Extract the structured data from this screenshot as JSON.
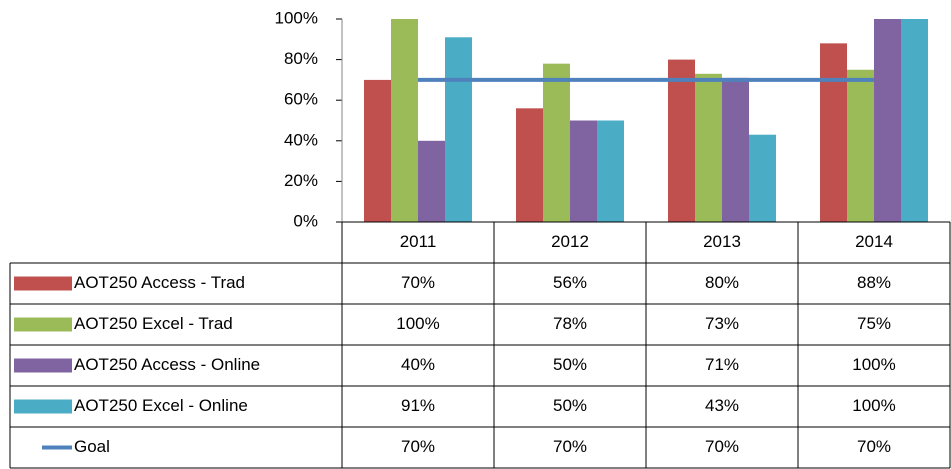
{
  "chart_data": {
    "type": "bar",
    "categories": [
      "2011",
      "2012",
      "2013",
      "2014"
    ],
    "series": [
      {
        "name": "AOT250 Access - Trad",
        "color": "#c0504d",
        "values": [
          70,
          56,
          80,
          88
        ],
        "value_labels": [
          "70%",
          "56%",
          "80%",
          "88%"
        ]
      },
      {
        "name": "AOT250 Excel - Trad",
        "color": "#9bbb59",
        "values": [
          100,
          78,
          73,
          75
        ],
        "value_labels": [
          "100%",
          "78%",
          "73%",
          "75%"
        ]
      },
      {
        "name": "AOT250 Access - Online",
        "color": "#8064a2",
        "values": [
          40,
          50,
          71,
          100
        ],
        "value_labels": [
          "40%",
          "50%",
          "71%",
          "100%"
        ]
      },
      {
        "name": "AOT250 Excel - Online",
        "color": "#4bacc6",
        "values": [
          91,
          50,
          43,
          100
        ],
        "value_labels": [
          "91%",
          "50%",
          "43%",
          "100%"
        ]
      },
      {
        "name": "Goal",
        "type": "line",
        "color": "#4f81bd",
        "values": [
          70,
          70,
          70,
          70
        ],
        "value_labels": [
          "70%",
          "70%",
          "70%",
          "70%"
        ]
      }
    ],
    "ylim": [
      0,
      100
    ],
    "yticks": [
      {
        "value": 0,
        "label": "0%"
      },
      {
        "value": 20,
        "label": "20%"
      },
      {
        "value": 40,
        "label": "40%"
      },
      {
        "value": 60,
        "label": "60%"
      },
      {
        "value": 80,
        "label": "80%"
      },
      {
        "value": 100,
        "label": "100%"
      }
    ]
  }
}
